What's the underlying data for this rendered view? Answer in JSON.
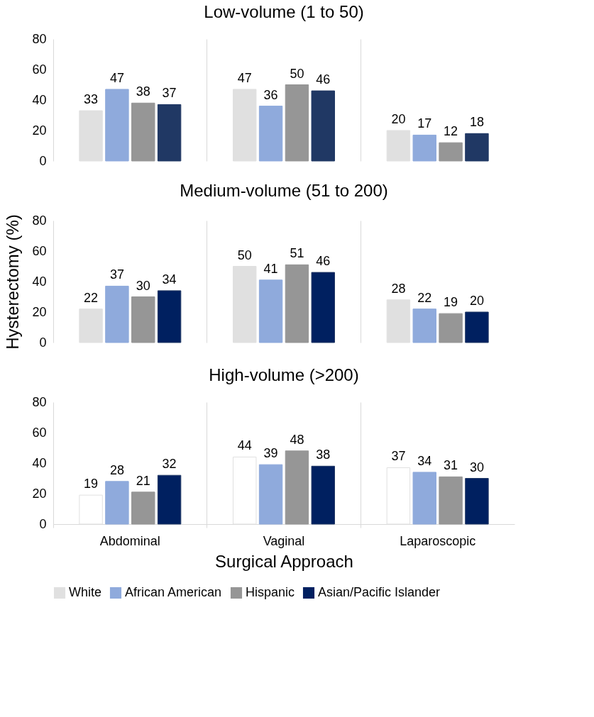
{
  "chart_data": [
    {
      "type": "bar",
      "title": "Low-volume  (1 to 50)",
      "categories": [
        null,
        null,
        null
      ],
      "series": [
        {
          "color": "#e0e0e0",
          "values": [
            33,
            47,
            20
          ]
        },
        {
          "color": "#8faadc",
          "values": [
            47,
            36,
            17
          ]
        },
        {
          "color": "#969696",
          "values": [
            38,
            50,
            12
          ]
        },
        {
          "color": "#203864",
          "values": [
            37,
            46,
            18
          ]
        }
      ],
      "ylim": [
        0,
        80
      ],
      "yticks": [
        0,
        20,
        40,
        60,
        80
      ],
      "data_labels": true,
      "grid": "x",
      "tick_labels": "y"
    },
    {
      "type": "bar",
      "title": "Medium-volume  (51 to 200)",
      "ylabel": "Hysterectomy  (%)",
      "categories": [
        null,
        null,
        null
      ],
      "series": [
        {
          "name": "White",
          "color": "#e0e0e0",
          "values": [
            22,
            50,
            28
          ]
        },
        {
          "name": "African American",
          "color": "#8faadc",
          "values": [
            37,
            41,
            22
          ]
        },
        {
          "name": "Hispanic",
          "color": "#969696",
          "values": [
            30,
            51,
            19
          ]
        },
        {
          "name": "Asian/Pacific Islander",
          "color": "#002060",
          "values": [
            34,
            46,
            20
          ]
        }
      ],
      "ylim": [
        0,
        80
      ],
      "yticks": [
        0,
        20,
        40,
        60,
        80
      ],
      "data_labels": true,
      "grid": "x",
      "tick_labels": "y",
      "legend": "bottom"
    },
    {
      "type": "bar",
      "title": "High-volume  (>200)",
      "xlabel": "Surgical Approach",
      "categories": [
        "Abdominal",
        "Vaginal",
        "Laparoscopic"
      ],
      "series": [
        {
          "color": "#ffffff",
          "values": [
            19,
            44,
            37
          ]
        },
        {
          "color": "#8faadc",
          "values": [
            28,
            39,
            34
          ]
        },
        {
          "color": "#969696",
          "values": [
            21,
            48,
            31
          ]
        },
        {
          "color": "#002060",
          "values": [
            32,
            38,
            30
          ]
        }
      ],
      "ylim": [
        0,
        80
      ],
      "yticks": [
        0,
        20,
        40,
        60,
        80
      ],
      "data_labels": true,
      "grid": "x"
    }
  ]
}
